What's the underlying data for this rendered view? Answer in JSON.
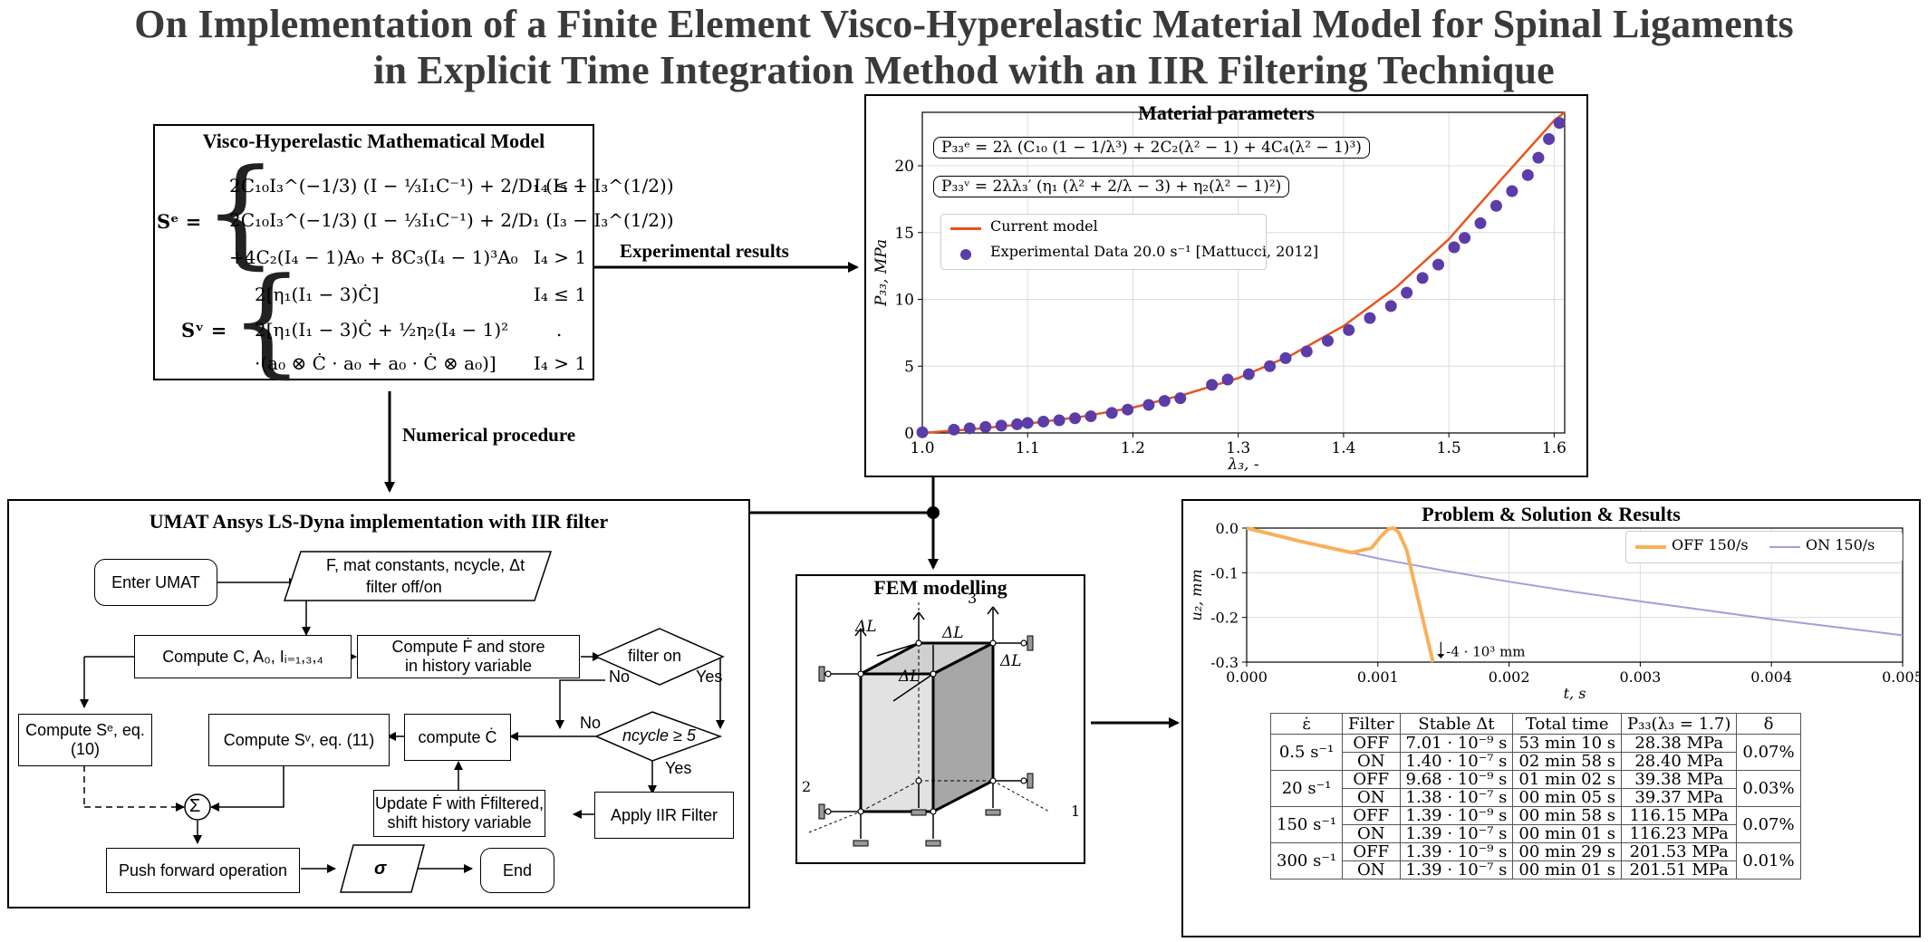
{
  "title": {
    "line1": "On Implementation of a Finite Element Visco-Hyperelastic Material Model for Spinal Ligaments",
    "line2": "in Explicit Time Integration Method with an IIR Filtering Technique"
  },
  "model_box": {
    "heading": "Visco-Hyperelastic Mathematical Model",
    "se_label": "Sᵉ =",
    "se_row1": "2C₁₀I₃^(−1/3) (I − ⅓I₁C⁻¹) + 2/D₁ (I₃ − I₃^(1/2))",
    "se_row1_cond": "I₄ ≤ 1",
    "se_row2": "2C₁₀I₃^(−1/3) (I − ⅓I₁C⁻¹) + 2/D₁ (I₃ − I₃^(1/2))",
    "se_row3": "+4C₂(I₄ − 1)A₀ + 8C₃(I₄ − 1)³A₀",
    "se_row3_cond": "I₄ > 1",
    "sv_label": "Sᵛ =",
    "sv_row1": "2[η₁(I₁ − 3)Ċ]",
    "sv_row1_cond": "I₄ ≤ 1",
    "sv_row2": "2[η₁(I₁ − 3)Ċ + ½η₂(I₄ − 1)²",
    "sv_row2_dot": ".",
    "sv_row3": "·(a₀ ⊗ Ċ · a₀ + a₀ · Ċ ⊗ a₀)]",
    "sv_row3_cond": "I₄ > 1"
  },
  "arrows": {
    "experimental": "Experimental results",
    "numerical": "Numerical procedure"
  },
  "params_box": {
    "heading": "Material parameters",
    "eq1": "P₃₃ᵉ = 2λ (C₁₀ (1 − 1/λ³) + 2C₂(λ² − 1) + 4C₄(λ² − 1)³)",
    "eq2": "P₃₃ᵛ = 2λλ₃′ (η₁ (λ² + 2/λ − 3) + η₂(λ² − 1)²)",
    "legend_model": "Current model",
    "legend_exp": "Experimental Data 20.0 s⁻¹ [Mattucci, 2012]"
  },
  "umat_box": {
    "heading": "UMAT Ansys LS-Dyna implementation with IIR filter",
    "enter": "Enter UMAT",
    "input_line1": "F, mat constants, ncycle, Δt",
    "input_line2": "filter off/on",
    "compute_c": "Compute C, A₀, Iᵢ₌₁,₃,₄",
    "compute_fdot_1": "Compute Ḟ and store",
    "compute_fdot_2": "in history variable",
    "filter_on": "filter on",
    "no1": "No",
    "yes1": "Yes",
    "compute_se": "Compute Sᵉ, eq. (10)",
    "compute_sv": "Compute Sᵛ, eq. (11)",
    "compute_cdot": "compute Ċ",
    "no2": "No",
    "ncycle": "ncycle ≥ 5",
    "yes2": "Yes",
    "update_1": "Update Ḟ with Ḟfiltered,",
    "update_2": "shift history variable",
    "apply_iir": "Apply IIR Filter",
    "sum": "Σ",
    "push": "Push forward operation",
    "sigma": "σ",
    "end": "End"
  },
  "fem_box": {
    "heading": "FEM modelling",
    "dl": "ΔL",
    "axis1": "1",
    "axis2": "2",
    "axis3": "3"
  },
  "results_box": {
    "heading": "Problem & Solution & Results",
    "legend_off": "OFF 150/s",
    "legend_on": "ON 150/s",
    "annotation": "-4 · 10³ mm",
    "ylabel": "u₂, mm",
    "xlabel": "t, s"
  },
  "table": {
    "headers": [
      "ε̇",
      "Filter",
      "Stable Δt",
      "Total time",
      "P₃₃(λ₃ = 1.7)",
      "δ"
    ],
    "groups": [
      {
        "rate": "0.5 s⁻¹",
        "delta": "0.07%",
        "rows": [
          {
            "filter": "OFF",
            "dt": "7.01 · 10⁻⁹ s",
            "time": "53 min 10 s",
            "p": "28.38 MPa"
          },
          {
            "filter": "ON",
            "dt": "1.40 · 10⁻⁷ s",
            "time": "02 min 58 s",
            "p": "28.40 MPa"
          }
        ]
      },
      {
        "rate": "20 s⁻¹",
        "delta": "0.03%",
        "rows": [
          {
            "filter": "OFF",
            "dt": "9.68 · 10⁻⁹ s",
            "time": "01 min 02 s",
            "p": "39.38 MPa"
          },
          {
            "filter": "ON",
            "dt": "1.38 · 10⁻⁷ s",
            "time": "00 min 05 s",
            "p": "39.37 MPa"
          }
        ]
      },
      {
        "rate": "150 s⁻¹",
        "delta": "0.07%",
        "rows": [
          {
            "filter": "OFF",
            "dt": "1.39 · 10⁻⁹ s",
            "time": "00 min 58 s",
            "p": "116.15 MPa"
          },
          {
            "filter": "ON",
            "dt": "1.39 · 10⁻⁷ s",
            "time": "00 min 01 s",
            "p": "116.23 MPa"
          }
        ]
      },
      {
        "rate": "300 s⁻¹",
        "delta": "0.01%",
        "rows": [
          {
            "filter": "OFF",
            "dt": "1.39 · 10⁻⁹ s",
            "time": "00 min 29 s",
            "p": "201.53 MPa"
          },
          {
            "filter": "ON",
            "dt": "1.39 · 10⁻⁷ s",
            "time": "00 min 01 s",
            "p": "201.51 MPa"
          }
        ]
      }
    ]
  },
  "chart_data": [
    {
      "type": "scatter",
      "xlabel": "λ₃, -",
      "ylabel": "P₃₃, MPa",
      "xlim": [
        1.0,
        1.61
      ],
      "ylim": [
        0,
        24
      ],
      "xticks": [
        "1.0",
        "1.1",
        "1.2",
        "1.3",
        "1.4",
        "1.5",
        "1.6"
      ],
      "yticks": [
        "0",
        "5",
        "10",
        "15",
        "20"
      ],
      "grid": true,
      "legend": "upper-left",
      "series": [
        {
          "name": "Current model",
          "color": "#e8541b",
          "x": [
            1.0,
            1.05,
            1.1,
            1.15,
            1.2,
            1.25,
            1.3,
            1.35,
            1.4,
            1.45,
            1.5,
            1.55,
            1.6,
            1.61
          ],
          "y": [
            0.0,
            0.3,
            0.7,
            1.2,
            1.9,
            2.9,
            4.1,
            5.8,
            8.0,
            10.9,
            14.5,
            19.0,
            23.4,
            24.0
          ]
        },
        {
          "name": "Experimental Data 20.0 s⁻¹ [Mattucci, 2012]",
          "color": "#5b3ca8",
          "x": [
            1.0,
            1.03,
            1.045,
            1.06,
            1.075,
            1.09,
            1.1,
            1.115,
            1.13,
            1.145,
            1.16,
            1.18,
            1.195,
            1.215,
            1.23,
            1.245,
            1.275,
            1.29,
            1.31,
            1.33,
            1.345,
            1.365,
            1.385,
            1.405,
            1.425,
            1.445,
            1.46,
            1.475,
            1.49,
            1.505,
            1.515,
            1.53,
            1.545,
            1.56,
            1.575,
            1.585,
            1.595,
            1.605
          ],
          "y": [
            0.05,
            0.25,
            0.35,
            0.45,
            0.55,
            0.65,
            0.75,
            0.85,
            0.95,
            1.1,
            1.25,
            1.5,
            1.75,
            2.1,
            2.4,
            2.6,
            3.6,
            4.0,
            4.4,
            5.0,
            5.6,
            6.1,
            6.9,
            7.7,
            8.6,
            9.5,
            10.5,
            11.6,
            12.6,
            13.9,
            14.6,
            15.7,
            17.0,
            18.1,
            19.3,
            20.6,
            22.0,
            23.2
          ]
        }
      ]
    },
    {
      "type": "line",
      "xlabel": "t, s",
      "ylabel": "u₂, mm",
      "xlim": [
        0.0,
        0.005
      ],
      "ylim": [
        -0.3,
        0.0
      ],
      "xticks": [
        "0.000",
        "0.001",
        "0.002",
        "0.003",
        "0.004",
        "0.005"
      ],
      "yticks": [
        "0.0",
        "-0.1",
        "-0.2",
        "-0.3"
      ],
      "grid": true,
      "legend": "upper-right",
      "series": [
        {
          "name": "OFF 150/s",
          "color": "#f7b05a",
          "x": [
            0.0,
            0.0004,
            0.0008,
            0.00095,
            0.00102,
            0.00108,
            0.00112,
            0.00116,
            0.00122,
            0.00126,
            0.0013,
            0.00134,
            0.00138,
            0.00142
          ],
          "y": [
            0.0,
            -0.029,
            -0.055,
            -0.045,
            -0.02,
            -0.002,
            0.0,
            -0.01,
            -0.05,
            -0.1,
            -0.15,
            -0.2,
            -0.25,
            -0.3
          ]
        },
        {
          "name": "ON 150/s",
          "color": "#a69ed8",
          "x": [
            0.0,
            0.0005,
            0.001,
            0.0015,
            0.002,
            0.0025,
            0.003,
            0.0035,
            0.004,
            0.0045,
            0.005
          ],
          "y": [
            0.0,
            -0.036,
            -0.068,
            -0.095,
            -0.12,
            -0.143,
            -0.164,
            -0.184,
            -0.204,
            -0.222,
            -0.24
          ]
        }
      ]
    }
  ]
}
